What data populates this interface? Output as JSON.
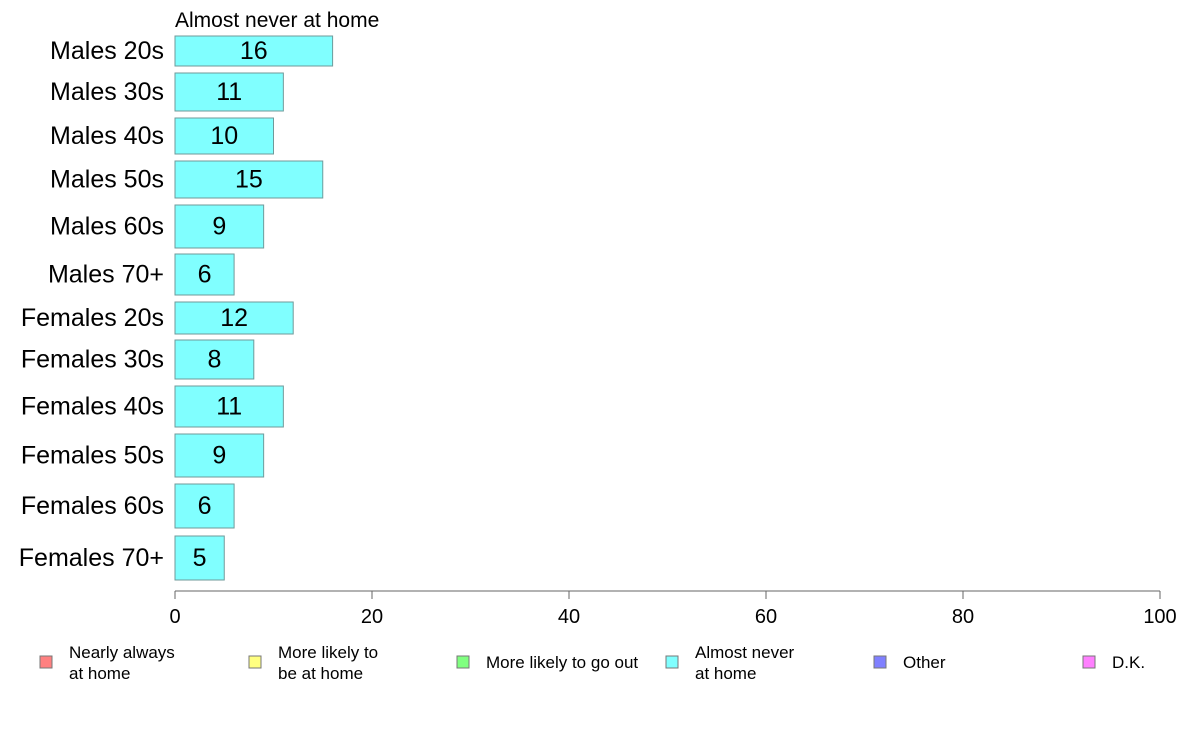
{
  "chart_data": {
    "type": "bar",
    "orientation": "horizontal",
    "title": "Almost never at home",
    "categories": [
      "Males 20s",
      "Males 30s",
      "Males 40s",
      "Males 50s",
      "Males 60s",
      "Males 70+",
      "Females 20s",
      "Females 30s",
      "Females 40s",
      "Females 50s",
      "Females 60s",
      "Females 70+"
    ],
    "values": [
      16,
      11,
      10,
      15,
      9,
      6,
      12,
      8,
      11,
      9,
      6,
      5
    ],
    "value_labels": [
      "16",
      "11",
      "10",
      "15",
      "9",
      "6",
      "12",
      "8",
      "11",
      "9",
      "6",
      "5"
    ],
    "xlim": [
      0,
      100
    ],
    "x_ticks": [
      0,
      20,
      40,
      60,
      80,
      100
    ],
    "grid": false,
    "bar_color": "#80ffff",
    "legend_position": "bottom",
    "legend": [
      {
        "lines": [
          "Nearly always",
          "at home"
        ],
        "color": "#ff8080"
      },
      {
        "lines": [
          "More likely to",
          "be at home"
        ],
        "color": "#ffff80"
      },
      {
        "lines": [
          "More likely to go out"
        ],
        "color": "#80ff80"
      },
      {
        "lines": [
          "Almost never",
          "at home"
        ],
        "color": "#80ffff"
      },
      {
        "lines": [
          "Other"
        ],
        "color": "#8080ff"
      },
      {
        "lines": [
          "D.K."
        ],
        "color": "#ff80ff"
      }
    ]
  }
}
